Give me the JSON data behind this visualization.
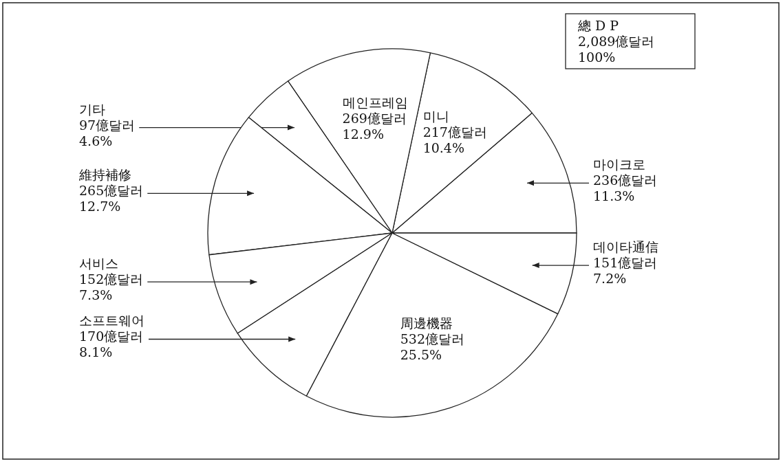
{
  "chart_data": {
    "type": "pie",
    "categories": [
      "마이크로",
      "미니",
      "메인프레임",
      "기타",
      "維持補修",
      "서비스",
      "소프트웨어",
      "周邊機器",
      "데이타通信"
    ],
    "values": [
      236,
      217,
      269,
      97,
      265,
      152,
      170,
      532,
      151
    ],
    "value_labels": [
      "236億달러\n11.3%",
      "217億달러\n10.4%",
      "269億달러\n12.9%",
      "97億달러\n4.6%",
      "265億달러\n12.7%",
      "152億달러\n7.3%",
      "170億달러\n8.1%",
      "532億달러\n25.5%",
      "151億달러\n7.2%"
    ],
    "colors": [
      "#ffffff",
      "#ffffff",
      "#ffffff",
      "#ffffff",
      "#ffffff",
      "#ffffff",
      "#ffffff",
      "#ffffff",
      "#ffffff"
    ],
    "annotations": [
      "總 D P",
      "2,089億달러",
      "100%"
    ]
  }
}
